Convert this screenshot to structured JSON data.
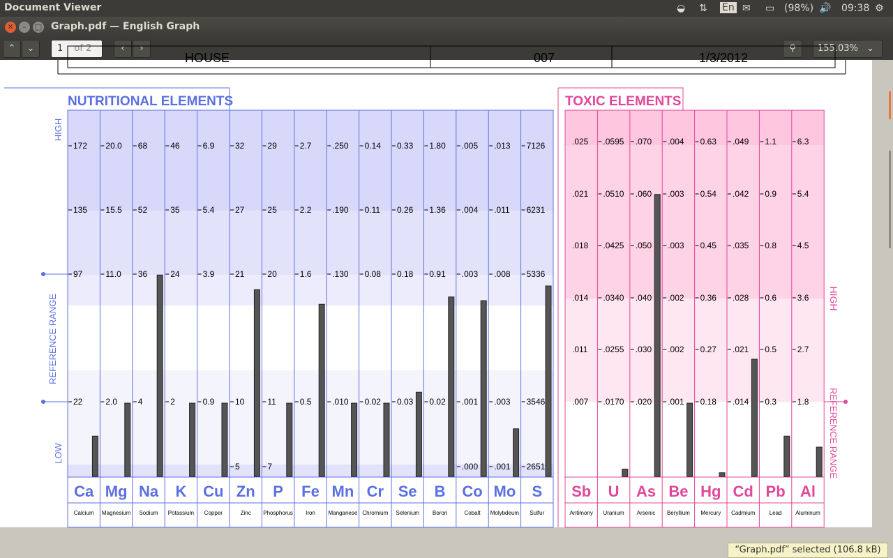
{
  "topbar": {
    "app": "Document Viewer",
    "lang": "En",
    "battery": "(98%)",
    "time": "09:38"
  },
  "window": {
    "title": "Graph.pdf — English Graph"
  },
  "toolbar": {
    "page": "1",
    "of": "of 2",
    "zoom": "155.03%"
  },
  "status": "“Graph.pdf” selected  (106.8 kB)",
  "colors": {
    "nutrition": "#5b6fe0",
    "toxic": "#e0479a",
    "bar": "#555555"
  },
  "header_row": [
    "HOUSE",
    "007",
    "1/3/2012"
  ],
  "chart_data": [
    {
      "type": "bar",
      "title": "NUTRITIONAL  ELEMENTS",
      "side_labels": [
        "HIGH",
        "REFERENCE RANGE",
        "LOW"
      ],
      "elements": [
        {
          "sym": "Ca",
          "name": "Calcium",
          "ticks": [
            "172",
            "135",
            "97",
            "22"
          ],
          "value": 0.11
        },
        {
          "sym": "Mg",
          "name": "Magnesium",
          "ticks": [
            "20.0",
            "15.5",
            "11.0",
            "2.0"
          ],
          "value": 0.2
        },
        {
          "sym": "Na",
          "name": "Sodium",
          "ticks": [
            "68",
            "52",
            "36",
            "4"
          ],
          "value": 0.55
        },
        {
          "sym": "K",
          "name": "Potassium",
          "ticks": [
            "46",
            "35",
            "24",
            "2"
          ],
          "value": 0.2
        },
        {
          "sym": "Cu",
          "name": "Copper",
          "ticks": [
            "6.9",
            "5.4",
            "3.9",
            "0.9"
          ],
          "value": 0.2
        },
        {
          "sym": "Zn",
          "name": "Zinc",
          "ticks": [
            "32",
            "27",
            "21",
            "10",
            "5"
          ],
          "value": 0.51
        },
        {
          "sym": "P",
          "name": "Phosphorus",
          "ticks": [
            "29",
            "25",
            "20",
            "11",
            "7"
          ],
          "value": 0.2
        },
        {
          "sym": "Fe",
          "name": "Iron",
          "ticks": [
            "2.7",
            "2.2",
            "1.6",
            "0.5"
          ],
          "value": 0.47
        },
        {
          "sym": "Mn",
          "name": "Manganese",
          "ticks": [
            ".250",
            ".190",
            ".130",
            ".010"
          ],
          "value": 0.2
        },
        {
          "sym": "Cr",
          "name": "Chromium",
          "ticks": [
            "0.14",
            "0.11",
            "0.08",
            "0.02"
          ],
          "value": 0.2
        },
        {
          "sym": "Se",
          "name": "Selenium",
          "ticks": [
            "0.33",
            "0.26",
            "0.18",
            "0.03"
          ],
          "value": 0.23
        },
        {
          "sym": "B",
          "name": "Boron",
          "ticks": [
            "1.80",
            "1.36",
            "0.91",
            "0.02"
          ],
          "value": 0.49
        },
        {
          "sym": "Co",
          "name": "Cobalt",
          "ticks": [
            ".005",
            ".004",
            ".003",
            ".001",
            ".000"
          ],
          "value": 0.48
        },
        {
          "sym": "Mo",
          "name": "Molybdeum",
          "ticks": [
            ".013",
            ".011",
            ".008",
            ".003",
            ".001"
          ],
          "value": 0.13
        },
        {
          "sym": "S",
          "name": "Sulfur",
          "ticks": [
            "7126",
            "6231",
            "5336",
            "3546",
            "2651"
          ],
          "value": 0.52
        }
      ]
    },
    {
      "type": "bar",
      "title": "TOXIC  ELEMENTS",
      "side_labels": [
        "HIGH",
        "REFERENCE RANGE"
      ],
      "elements": [
        {
          "sym": "Sb",
          "name": "Antimony",
          "ticks": [
            ".025",
            ".021",
            ".018",
            ".014",
            ".011",
            ".007"
          ],
          "value": 0.0
        },
        {
          "sym": "U",
          "name": "Uranium",
          "ticks": [
            ".0595",
            ".0510",
            ".0425",
            ".0340",
            ".0255",
            ".0170"
          ],
          "value": 0.02
        },
        {
          "sym": "As",
          "name": "Arsenic",
          "ticks": [
            ".070",
            ".060",
            ".050",
            ".040",
            ".030",
            ".020"
          ],
          "value": 0.77
        },
        {
          "sym": "Be",
          "name": "Beryllium",
          "ticks": [
            ".004",
            ".003",
            ".003",
            ".002",
            ".002",
            ".001"
          ],
          "value": 0.2
        },
        {
          "sym": "Hg",
          "name": "Mercury",
          "ticks": [
            "0.63",
            "0.54",
            "0.45",
            "0.36",
            "0.27",
            "0.18"
          ],
          "value": 0.01
        },
        {
          "sym": "Cd",
          "name": "Cadmium",
          "ticks": [
            ".049",
            ".042",
            ".035",
            ".028",
            ".021",
            ".014"
          ],
          "value": 0.32
        },
        {
          "sym": "Pb",
          "name": "Lead",
          "ticks": [
            "1.1",
            "0.9",
            "0.8",
            "0.6",
            "0.5",
            "0.3"
          ],
          "value": 0.11
        },
        {
          "sym": "Al",
          "name": "Aluminum",
          "ticks": [
            "6.3",
            "5.4",
            "4.5",
            "3.6",
            "2.7",
            "1.8"
          ],
          "value": 0.08
        }
      ]
    }
  ]
}
